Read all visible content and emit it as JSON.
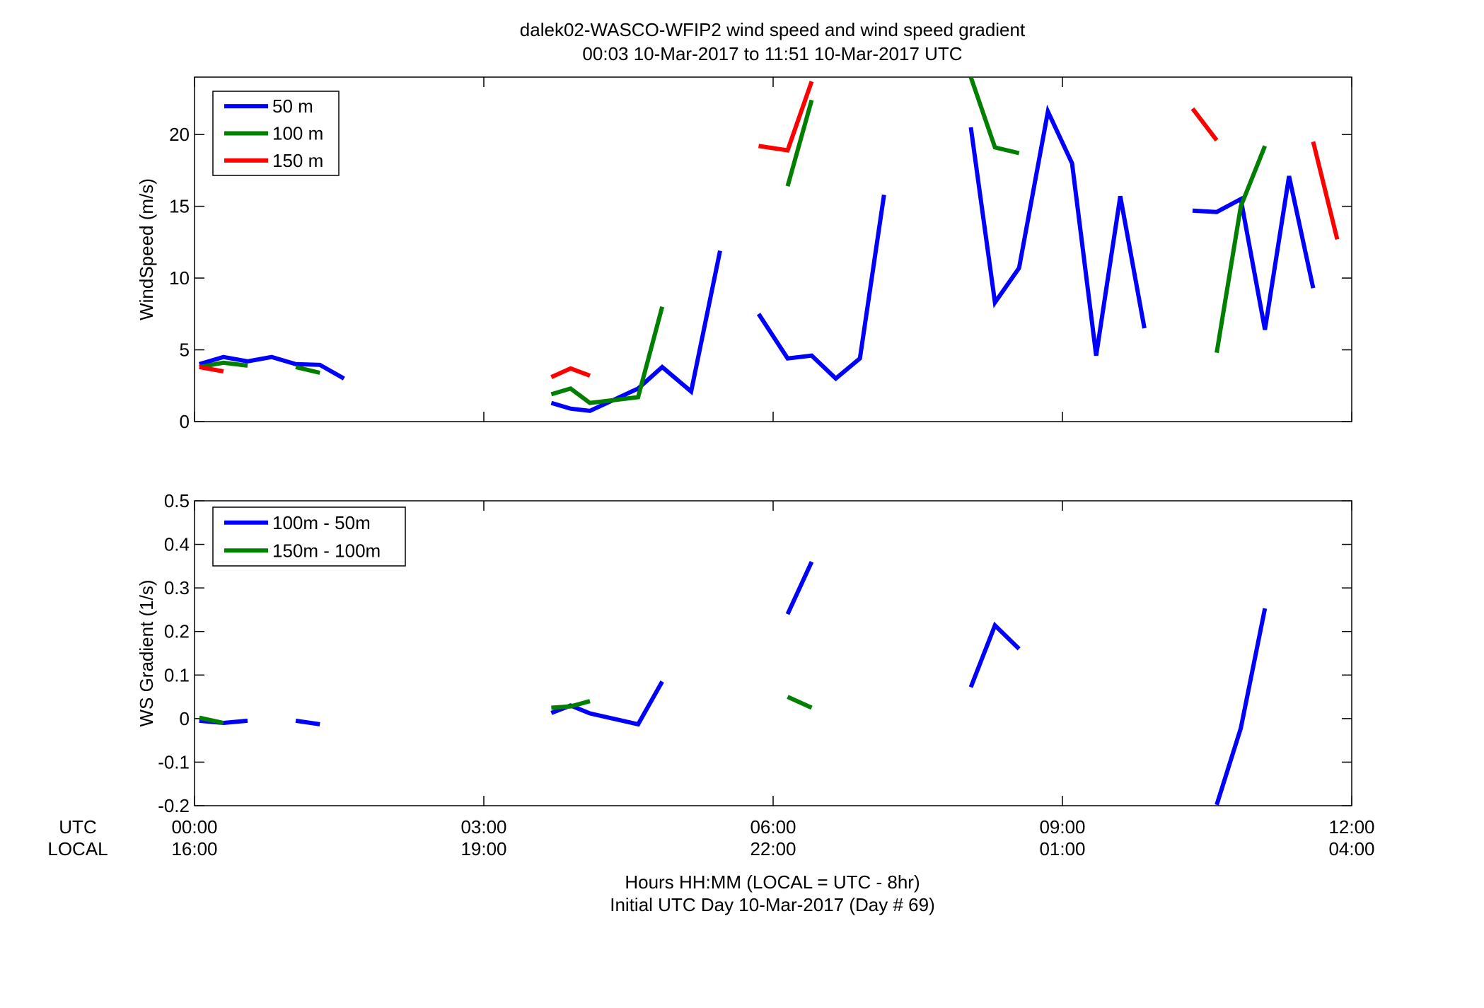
{
  "figure": {
    "title_line1": "dalek02-WASCO-WFIP2  wind speed and wind speed gradient",
    "title_line2": "00:03 10-Mar-2017 to 11:51 10-Mar-2017  UTC",
    "row_label_utc": "UTC",
    "row_label_local": "LOCAL",
    "xlabel_line1": "Hours HH:MM  (LOCAL = UTC - 8hr)",
    "xlabel_line2": "Initial UTC Day 10-Mar-2017 (Day # 69)",
    "x_ticks_utc": [
      "00:00",
      "03:00",
      "06:00",
      "09:00",
      "12:00"
    ],
    "x_ticks_local": [
      "16:00",
      "19:00",
      "22:00",
      "01:00",
      "04:00"
    ]
  },
  "chart_data": [
    {
      "type": "line",
      "ylabel": "WindSpeed (m/s)",
      "xlim": [
        0,
        12
      ],
      "ylim": [
        0,
        24
      ],
      "yticks": [
        0,
        5,
        10,
        15,
        20
      ],
      "xticks": [
        0,
        3,
        6,
        9,
        12
      ],
      "grid": false,
      "legend_position": "top-left",
      "series": [
        {
          "name": "50 m",
          "color": "#0000ff",
          "segments": [
            [
              [
                0.05,
                4.0
              ],
              [
                0.3,
                4.5
              ],
              [
                0.55,
                4.2
              ],
              [
                0.8,
                4.5
              ],
              [
                1.05,
                4.0
              ],
              [
                1.3,
                3.95
              ],
              [
                1.55,
                3.0
              ]
            ],
            [
              [
                3.7,
                1.3
              ],
              [
                3.9,
                0.9
              ],
              [
                4.1,
                0.75
              ],
              [
                4.6,
                2.3
              ],
              [
                4.85,
                3.8
              ],
              [
                5.15,
                2.1
              ],
              [
                5.45,
                11.9
              ]
            ],
            [
              [
                5.85,
                7.5
              ],
              [
                6.15,
                4.4
              ],
              [
                6.4,
                4.6
              ],
              [
                6.65,
                3.0
              ],
              [
                6.9,
                4.4
              ],
              [
                7.15,
                15.8
              ]
            ],
            [
              [
                8.05,
                20.5
              ],
              [
                8.3,
                8.3
              ],
              [
                8.55,
                10.7
              ],
              [
                8.85,
                21.6
              ],
              [
                9.1,
                18.0
              ],
              [
                9.35,
                4.6
              ],
              [
                9.6,
                15.7
              ],
              [
                9.85,
                6.5
              ]
            ],
            [
              [
                10.35,
                14.7
              ],
              [
                10.6,
                14.6
              ],
              [
                10.85,
                15.5
              ],
              [
                11.1,
                6.4
              ],
              [
                11.35,
                17.1
              ],
              [
                11.6,
                9.3
              ]
            ]
          ]
        },
        {
          "name": "100 m",
          "color": "#007f00",
          "segments": [
            [
              [
                0.05,
                3.8
              ],
              [
                0.3,
                4.1
              ],
              [
                0.55,
                3.9
              ]
            ],
            [
              [
                1.05,
                3.8
              ],
              [
                1.3,
                3.4
              ]
            ],
            [
              [
                3.7,
                1.9
              ],
              [
                3.9,
                2.3
              ],
              [
                4.1,
                1.3
              ],
              [
                4.35,
                1.5
              ],
              [
                4.6,
                1.7
              ],
              [
                4.85,
                8.0
              ]
            ],
            [
              [
                6.15,
                16.4
              ],
              [
                6.4,
                22.4
              ]
            ],
            [
              [
                8.05,
                24.0
              ],
              [
                8.3,
                19.1
              ],
              [
                8.55,
                18.7
              ]
            ],
            [
              [
                10.6,
                4.8
              ],
              [
                10.85,
                15.0
              ],
              [
                11.1,
                19.2
              ]
            ]
          ]
        },
        {
          "name": "150 m",
          "color": "#ff0000",
          "segments": [
            [
              [
                0.05,
                3.8
              ],
              [
                0.3,
                3.5
              ]
            ],
            [
              [
                3.7,
                3.1
              ],
              [
                3.9,
                3.7
              ],
              [
                4.1,
                3.2
              ]
            ],
            [
              [
                5.85,
                19.2
              ],
              [
                6.15,
                18.9
              ],
              [
                6.4,
                23.7
              ]
            ],
            [
              [
                10.35,
                21.8
              ],
              [
                10.6,
                19.6
              ]
            ],
            [
              [
                11.6,
                19.5
              ],
              [
                11.85,
                12.7
              ]
            ]
          ]
        }
      ]
    },
    {
      "type": "line",
      "ylabel": "WS Gradient (1/s)",
      "xlim": [
        0,
        12
      ],
      "ylim": [
        -0.2,
        0.5
      ],
      "yticks": [
        -0.2,
        -0.1,
        0,
        0.1,
        0.2,
        0.3,
        0.4,
        0.5
      ],
      "xticks": [
        0,
        3,
        6,
        9,
        12
      ],
      "grid": false,
      "legend_position": "top-left",
      "series": [
        {
          "name": "100m - 50m",
          "color": "#0000ff",
          "segments": [
            [
              [
                0.05,
                -0.005
              ],
              [
                0.3,
                -0.01
              ],
              [
                0.55,
                -0.005
              ]
            ],
            [
              [
                1.05,
                -0.005
              ],
              [
                1.3,
                -0.013
              ]
            ],
            [
              [
                3.7,
                0.013
              ],
              [
                3.9,
                0.03
              ],
              [
                4.1,
                0.012
              ],
              [
                4.6,
                -0.013
              ],
              [
                4.85,
                0.085
              ]
            ],
            [
              [
                6.15,
                0.24
              ],
              [
                6.4,
                0.36
              ]
            ],
            [
              [
                8.05,
                0.072
              ],
              [
                8.3,
                0.214
              ],
              [
                8.55,
                0.16
              ]
            ],
            [
              [
                10.6,
                -0.198
              ],
              [
                10.85,
                -0.022
              ],
              [
                11.1,
                0.253
              ]
            ]
          ]
        },
        {
          "name": "150m - 100m",
          "color": "#007f00",
          "segments": [
            [
              [
                0.05,
                0.002
              ],
              [
                0.3,
                -0.01
              ]
            ],
            [
              [
                3.7,
                0.025
              ],
              [
                3.9,
                0.028
              ],
              [
                4.1,
                0.04
              ]
            ],
            [
              [
                6.15,
                0.05
              ],
              [
                6.4,
                0.025
              ]
            ]
          ]
        }
      ]
    }
  ]
}
